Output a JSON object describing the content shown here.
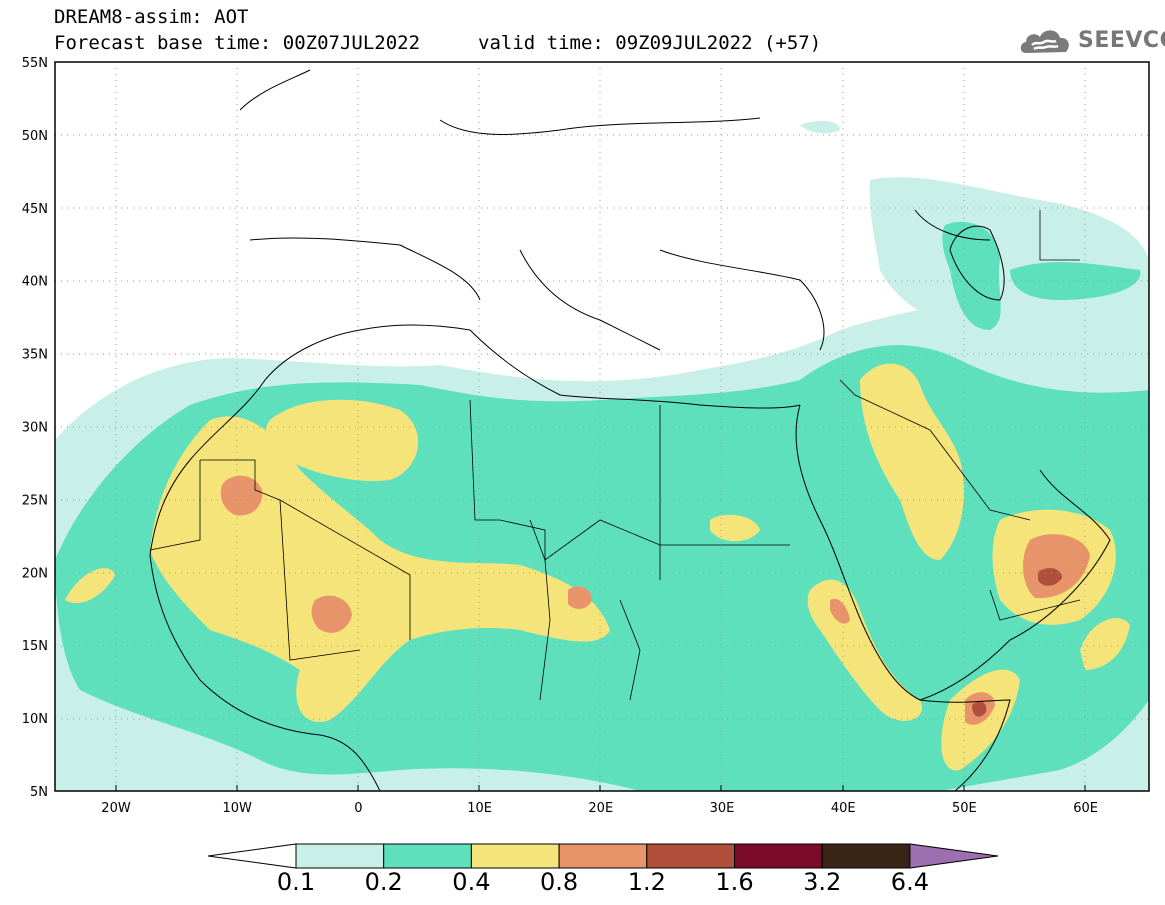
{
  "header": {
    "title_line1": "DREAM8-assim: AOT",
    "title_line2_left": "Forecast base time: 00Z07JUL2022",
    "title_line2_right": "valid time: 09Z09JUL2022 (+57)",
    "logo_text": "SEEVCCC",
    "logo_icon": "cloud-icon"
  },
  "map": {
    "lat_labels": [
      "55N",
      "50N",
      "45N",
      "40N",
      "35N",
      "30N",
      "25N",
      "20N",
      "15N",
      "10N",
      "5N"
    ],
    "lon_labels": [
      "20W",
      "10W",
      "0",
      "10E",
      "20E",
      "30E",
      "40E",
      "50E",
      "60E"
    ],
    "extent": {
      "lon": [
        -25,
        65
      ],
      "lat": [
        5,
        55
      ]
    }
  },
  "colorbar": {
    "labels": [
      "0.1",
      "0.2",
      "0.4",
      "0.8",
      "1.2",
      "1.6",
      "3.2",
      "6.4"
    ],
    "colors": [
      "#ffffff",
      "#c8f0e8",
      "#5ee0bd",
      "#f5e47a",
      "#e8946a",
      "#b0503c",
      "#7a0a28",
      "#3a2416",
      "#9b6fb0"
    ]
  }
}
